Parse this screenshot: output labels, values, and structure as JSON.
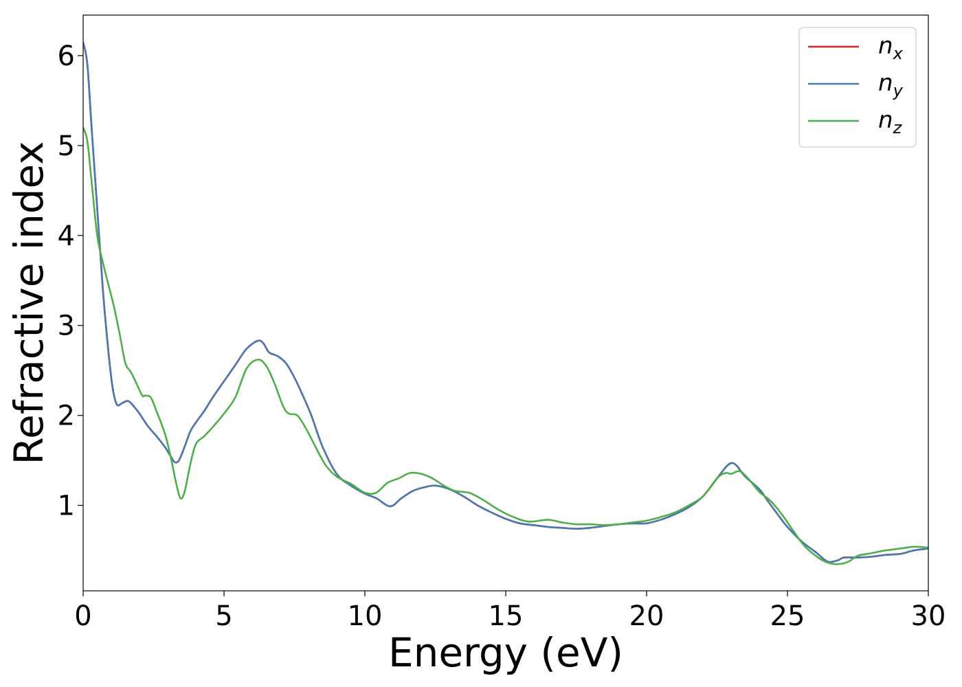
{
  "chart_data": {
    "type": "line",
    "xlabel": "Energy (eV)",
    "ylabel": "Refractive index",
    "xlim": [
      0,
      30
    ],
    "ylim": [
      0.05,
      6.45
    ],
    "xticks": [
      0,
      5,
      10,
      15,
      20,
      25,
      30
    ],
    "yticks": [
      1,
      2,
      3,
      4,
      5,
      6
    ],
    "grid": false,
    "legend_position": "top-right",
    "series": [
      {
        "name": "n",
        "subscript": "x",
        "color": "#d62728",
        "x": [
          0,
          0.15,
          0.3,
          0.5,
          0.7,
          0.9,
          1.05,
          1.2,
          1.4,
          1.6,
          1.8,
          2.0,
          2.3,
          2.6,
          2.9,
          3.1,
          3.25,
          3.4,
          3.6,
          3.8,
          4.0,
          4.3,
          4.6,
          5.0,
          5.4,
          5.8,
          6.2,
          6.4,
          6.6,
          6.9,
          7.2,
          7.5,
          7.8,
          8.1,
          8.5,
          9.0,
          9.5,
          10.0,
          10.4,
          10.9,
          11.3,
          11.7,
          12.1,
          12.5,
          13.0,
          13.5,
          14.0,
          14.5,
          15.0,
          15.5,
          16.0,
          16.5,
          17.0,
          17.5,
          18.0,
          18.5,
          19.0,
          19.5,
          20.0,
          20.5,
          21.0,
          21.5,
          22.0,
          22.5,
          22.8,
          23.0,
          23.2,
          23.5,
          24.0,
          24.3,
          24.7,
          25.0,
          25.5,
          26.0,
          26.3,
          26.5,
          26.8,
          27.0,
          27.5,
          28.0,
          28.5,
          29.0,
          29.5,
          30.0
        ],
        "y": [
          6.15,
          5.9,
          5.2,
          4.3,
          3.4,
          2.7,
          2.3,
          2.12,
          2.14,
          2.16,
          2.1,
          2.02,
          1.88,
          1.77,
          1.65,
          1.55,
          1.48,
          1.5,
          1.65,
          1.82,
          1.92,
          2.05,
          2.2,
          2.38,
          2.56,
          2.74,
          2.83,
          2.8,
          2.7,
          2.66,
          2.58,
          2.42,
          2.22,
          2.0,
          1.65,
          1.35,
          1.22,
          1.13,
          1.08,
          0.99,
          1.08,
          1.16,
          1.2,
          1.22,
          1.18,
          1.1,
          1.0,
          0.92,
          0.85,
          0.8,
          0.78,
          0.76,
          0.75,
          0.74,
          0.75,
          0.77,
          0.79,
          0.8,
          0.8,
          0.84,
          0.9,
          0.98,
          1.1,
          1.3,
          1.42,
          1.47,
          1.44,
          1.32,
          1.18,
          1.05,
          0.88,
          0.76,
          0.6,
          0.48,
          0.4,
          0.37,
          0.39,
          0.42,
          0.42,
          0.43,
          0.45,
          0.46,
          0.5,
          0.52
        ]
      },
      {
        "name": "n",
        "subscript": "y",
        "color": "#4a78b0",
        "x": [
          0,
          0.15,
          0.3,
          0.5,
          0.7,
          0.9,
          1.05,
          1.2,
          1.4,
          1.6,
          1.8,
          2.0,
          2.3,
          2.6,
          2.9,
          3.1,
          3.25,
          3.4,
          3.6,
          3.8,
          4.0,
          4.3,
          4.6,
          5.0,
          5.4,
          5.8,
          6.2,
          6.4,
          6.6,
          6.9,
          7.2,
          7.5,
          7.8,
          8.1,
          8.5,
          9.0,
          9.5,
          10.0,
          10.4,
          10.9,
          11.3,
          11.7,
          12.1,
          12.5,
          13.0,
          13.5,
          14.0,
          14.5,
          15.0,
          15.5,
          16.0,
          16.5,
          17.0,
          17.5,
          18.0,
          18.5,
          19.0,
          19.5,
          20.0,
          20.5,
          21.0,
          21.5,
          22.0,
          22.5,
          22.8,
          23.0,
          23.2,
          23.5,
          24.0,
          24.3,
          24.7,
          25.0,
          25.5,
          26.0,
          26.3,
          26.5,
          26.8,
          27.0,
          27.5,
          28.0,
          28.5,
          29.0,
          29.5,
          30.0
        ],
        "y": [
          6.15,
          5.9,
          5.2,
          4.3,
          3.4,
          2.7,
          2.3,
          2.12,
          2.14,
          2.16,
          2.1,
          2.02,
          1.88,
          1.77,
          1.65,
          1.55,
          1.48,
          1.5,
          1.65,
          1.82,
          1.92,
          2.05,
          2.2,
          2.38,
          2.56,
          2.74,
          2.83,
          2.8,
          2.7,
          2.66,
          2.58,
          2.42,
          2.22,
          2.0,
          1.65,
          1.35,
          1.22,
          1.13,
          1.08,
          0.99,
          1.08,
          1.16,
          1.2,
          1.22,
          1.18,
          1.1,
          1.0,
          0.92,
          0.85,
          0.8,
          0.78,
          0.76,
          0.75,
          0.74,
          0.75,
          0.77,
          0.79,
          0.8,
          0.8,
          0.84,
          0.9,
          0.98,
          1.1,
          1.3,
          1.42,
          1.47,
          1.44,
          1.32,
          1.18,
          1.05,
          0.88,
          0.76,
          0.6,
          0.48,
          0.4,
          0.37,
          0.39,
          0.42,
          0.42,
          0.43,
          0.45,
          0.46,
          0.5,
          0.52
        ]
      },
      {
        "name": "n",
        "subscript": "z",
        "color": "#4daf4a",
        "x": [
          0,
          0.15,
          0.3,
          0.5,
          0.7,
          0.9,
          1.1,
          1.3,
          1.5,
          1.7,
          1.9,
          2.1,
          2.2,
          2.4,
          2.6,
          2.9,
          3.1,
          3.3,
          3.45,
          3.6,
          3.8,
          4.0,
          4.3,
          4.6,
          5.0,
          5.4,
          5.8,
          6.2,
          6.5,
          6.8,
          7.1,
          7.3,
          7.6,
          7.9,
          8.2,
          8.6,
          9.0,
          9.5,
          10.0,
          10.4,
          10.8,
          11.2,
          11.6,
          12.0,
          12.4,
          12.8,
          13.2,
          13.7,
          14.2,
          14.7,
          15.2,
          15.8,
          16.5,
          17.0,
          17.5,
          18.0,
          18.5,
          19.0,
          19.5,
          20.0,
          20.5,
          21.0,
          21.5,
          22.0,
          22.5,
          22.8,
          23.0,
          23.3,
          23.6,
          24.0,
          24.4,
          24.8,
          25.2,
          25.6,
          26.0,
          26.3,
          26.6,
          26.9,
          27.2,
          27.5,
          28.0,
          28.5,
          29.0,
          29.5,
          30.0
        ],
        "y": [
          5.2,
          5.05,
          4.6,
          4.0,
          3.7,
          3.45,
          3.2,
          2.9,
          2.58,
          2.48,
          2.35,
          2.22,
          2.22,
          2.2,
          2.05,
          1.8,
          1.55,
          1.25,
          1.08,
          1.15,
          1.45,
          1.68,
          1.77,
          1.87,
          2.02,
          2.2,
          2.52,
          2.62,
          2.55,
          2.35,
          2.1,
          2.02,
          2.0,
          1.86,
          1.68,
          1.45,
          1.32,
          1.24,
          1.14,
          1.14,
          1.25,
          1.3,
          1.36,
          1.35,
          1.3,
          1.22,
          1.16,
          1.14,
          1.06,
          0.96,
          0.88,
          0.82,
          0.84,
          0.81,
          0.79,
          0.79,
          0.78,
          0.79,
          0.81,
          0.83,
          0.87,
          0.92,
          1.0,
          1.1,
          1.3,
          1.36,
          1.35,
          1.38,
          1.3,
          1.15,
          1.05,
          0.9,
          0.72,
          0.55,
          0.44,
          0.38,
          0.35,
          0.35,
          0.38,
          0.44,
          0.47,
          0.5,
          0.52,
          0.54,
          0.53
        ]
      }
    ]
  }
}
